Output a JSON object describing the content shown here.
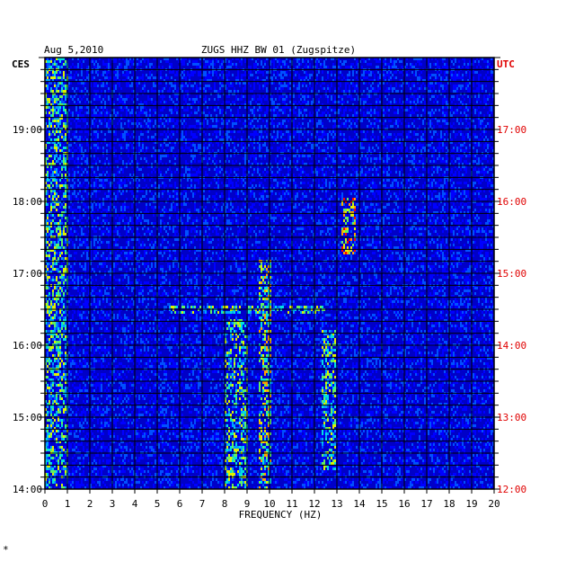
{
  "header": {
    "date": "Aug 5,2010",
    "station": "ZUGS HHZ BW 01 (Zugspitze)",
    "left_zone": "CES",
    "right_zone": "UTC"
  },
  "footer": {
    "mark": "*"
  },
  "colors": {
    "background": "#0000c8",
    "grid": "#000000",
    "utc_text": "#e00000",
    "palette": [
      "#0000b4",
      "#0000ff",
      "#0050ff",
      "#00a0ff",
      "#00e0e0",
      "#60f060",
      "#e0f000",
      "#ffa000",
      "#ff0000"
    ]
  },
  "chart_data": {
    "type": "heatmap",
    "title": "ZUGS HHZ BW 01 (Zugspitze)",
    "xlabel": "FREQUENCY (HZ)",
    "ylabel": "",
    "xlim": [
      0,
      20
    ],
    "x_ticks": [
      "0",
      "1",
      "2",
      "3",
      "4",
      "5",
      "6",
      "7",
      "8",
      "9",
      "10",
      "11",
      "12",
      "13",
      "14",
      "15",
      "16",
      "17",
      "18",
      "19",
      "20"
    ],
    "y_ticks_left": [
      "19:00",
      "18:00",
      "17:00",
      "16:00",
      "15:00",
      "14:00"
    ],
    "y_ticks_right": [
      "17:00",
      "16:00",
      "15:00",
      "14:00",
      "13:00",
      "12:00"
    ],
    "time_range_cest": [
      "14:00",
      "19:59"
    ],
    "grid": true,
    "energy_bands": [
      {
        "freq": [
          0.0,
          1.0
        ],
        "time": [
          "14:00",
          "19:59"
        ],
        "level": 5
      },
      {
        "freq": [
          8.0,
          9.0
        ],
        "time": [
          "14:00",
          "16:20"
        ],
        "level": 5
      },
      {
        "freq": [
          9.5,
          10.0
        ],
        "time": [
          "14:00",
          "17:10"
        ],
        "level": 6
      },
      {
        "freq": [
          12.3,
          12.9
        ],
        "time": [
          "14:20",
          "16:10"
        ],
        "level": 5
      },
      {
        "freq": [
          13.2,
          13.8
        ],
        "time": [
          "17:20",
          "18:00"
        ],
        "level": 7
      },
      {
        "freq": [
          5.5,
          12.5
        ],
        "time": [
          "16:30",
          "16:30"
        ],
        "level": 5
      }
    ]
  }
}
